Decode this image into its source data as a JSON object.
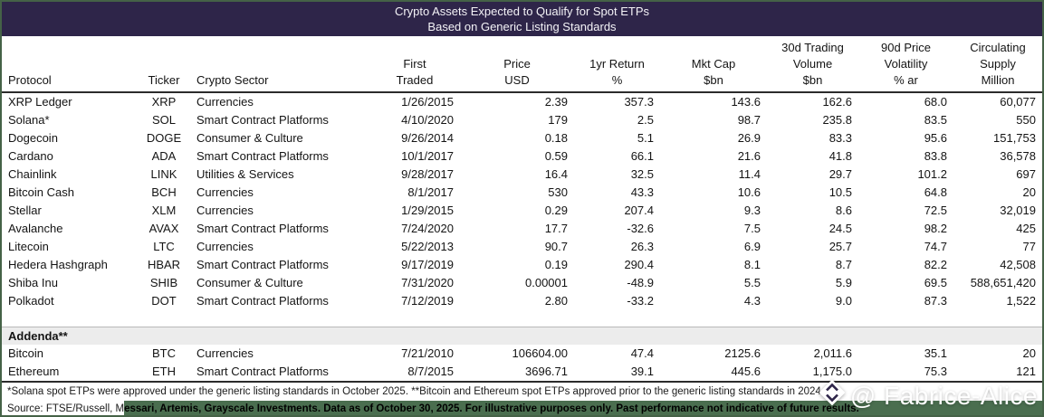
{
  "title": {
    "line1": "Crypto Assets Expected to Qualify for Spot ETPs",
    "line2": "Based on Generic Listing Standards"
  },
  "table": {
    "columns": [
      {
        "id": "protocol",
        "lines": [
          "Protocol"
        ],
        "align": "left"
      },
      {
        "id": "ticker",
        "lines": [
          "Ticker"
        ],
        "align": "center"
      },
      {
        "id": "crypto-sector",
        "lines": [
          "Crypto Sector"
        ],
        "align": "left"
      },
      {
        "id": "first-traded",
        "lines": [
          "First",
          "Traded"
        ],
        "align": "right"
      },
      {
        "id": "price-usd",
        "lines": [
          "Price",
          "USD"
        ],
        "align": "right"
      },
      {
        "id": "return-1yr",
        "lines": [
          "1yr Return",
          "%"
        ],
        "align": "right"
      },
      {
        "id": "mkt-cap",
        "lines": [
          "Mkt Cap",
          "$bn"
        ],
        "align": "right"
      },
      {
        "id": "volume-30d",
        "lines": [
          "30d Trading",
          "Volume",
          "$bn"
        ],
        "align": "right"
      },
      {
        "id": "volatility-90d",
        "lines": [
          "90d Price",
          "Volatility",
          "% ar"
        ],
        "align": "right"
      },
      {
        "id": "supply",
        "lines": [
          "Circulating",
          "Supply",
          "Million"
        ],
        "align": "right"
      }
    ],
    "rows": [
      [
        "XRP Ledger",
        "XRP",
        "Currencies",
        "1/26/2015",
        "2.39",
        "357.3",
        "143.6",
        "162.6",
        "68.0",
        "60,077"
      ],
      [
        "Solana*",
        "SOL",
        "Smart Contract Platforms",
        "4/10/2020",
        "179",
        "2.5",
        "98.7",
        "235.8",
        "83.5",
        "550"
      ],
      [
        "Dogecoin",
        "DOGE",
        "Consumer & Culture",
        "9/26/2014",
        "0.18",
        "5.1",
        "26.9",
        "83.3",
        "95.6",
        "151,753"
      ],
      [
        "Cardano",
        "ADA",
        "Smart Contract Platforms",
        "10/1/2017",
        "0.59",
        "66.1",
        "21.6",
        "41.8",
        "83.8",
        "36,578"
      ],
      [
        "Chainlink",
        "LINK",
        "Utilities & Services",
        "9/28/2017",
        "16.4",
        "32.5",
        "11.4",
        "29.7",
        "101.2",
        "697"
      ],
      [
        "Bitcoin Cash",
        "BCH",
        "Currencies",
        "8/1/2017",
        "530",
        "43.3",
        "10.6",
        "10.5",
        "64.8",
        "20"
      ],
      [
        "Stellar",
        "XLM",
        "Currencies",
        "1/29/2015",
        "0.29",
        "207.4",
        "9.3",
        "8.6",
        "72.5",
        "32,019"
      ],
      [
        "Avalanche",
        "AVAX",
        "Smart Contract Platforms",
        "7/24/2020",
        "17.7",
        "-32.6",
        "7.5",
        "24.5",
        "98.2",
        "425"
      ],
      [
        "Litecoin",
        "LTC",
        "Currencies",
        "5/22/2013",
        "90.7",
        "26.3",
        "6.9",
        "25.7",
        "74.7",
        "77"
      ],
      [
        "Hedera Hashgraph",
        "HBAR",
        "Smart Contract Platforms",
        "9/17/2019",
        "0.19",
        "290.4",
        "8.1",
        "8.7",
        "82.2",
        "42,508"
      ],
      [
        "Shiba Inu",
        "SHIB",
        "Consumer & Culture",
        "7/31/2020",
        "0.00001",
        "-48.9",
        "5.5",
        "5.9",
        "69.5",
        "588,651,420"
      ],
      [
        "Polkadot",
        "DOT",
        "Smart Contract Platforms",
        "7/12/2019",
        "2.80",
        "-33.2",
        "4.3",
        "9.0",
        "87.3",
        "1,522"
      ]
    ],
    "addenda_label": "Addenda**",
    "addenda_rows": [
      [
        "Bitcoin",
        "BTC",
        "Currencies",
        "7/21/2010",
        "106604.00",
        "47.4",
        "2125.6",
        "2,011.6",
        "35.1",
        "20"
      ],
      [
        "Ethereum",
        "ETH",
        "Smart Contract Platforms",
        "8/7/2015",
        "3696.71",
        "39.1",
        "445.6",
        "1,175.0",
        "75.3",
        "121"
      ]
    ]
  },
  "footnote": "*Solana spot ETPs were approved under the generic listing standards in October 2025. **Bitcoin and Ethereum spot ETPs approved prior to the generic listing standards in 2024",
  "source": {
    "prefix": "Source: FTSE/Russell, M",
    "highlighted": "essari, Artemis, Grayscale Investments. Data as of October 30, 2025. For illustrative purposes only. Past performance not indicative of future results."
  },
  "watermark": {
    "text": "@ Fabrice-Alice",
    "icon": "diamond-sort-icon"
  },
  "colors": {
    "titlebar_bg": "#2e2549",
    "frame_border": "#456247",
    "source_highlight": "#4a6e4f",
    "addenda_bg": "#ececec"
  }
}
